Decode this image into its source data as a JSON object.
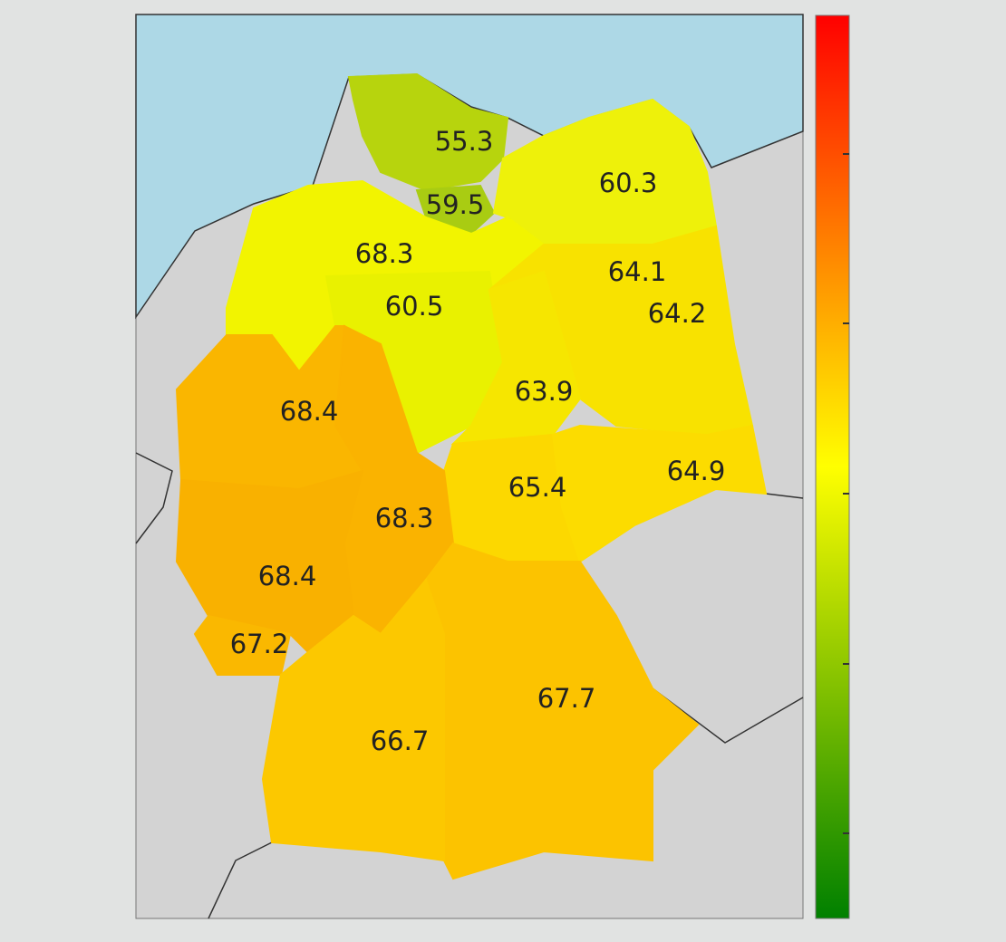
{
  "map": {
    "regions": [
      {
        "value": 55.3,
        "color": "#b7d40d"
      },
      {
        "value": 59.5,
        "color": "#a9cc12"
      },
      {
        "value": 60.3,
        "color": "#eef10a"
      },
      {
        "value": 68.3,
        "color": "#f2f400"
      },
      {
        "value": 60.5,
        "color": "#e9f100"
      },
      {
        "value": 64.1,
        "color": "#f8e200"
      },
      {
        "value": 64.2,
        "color": "#f8e200"
      },
      {
        "value": 68.4,
        "color": "#fab600"
      },
      {
        "value": 63.9,
        "color": "#f6e600"
      },
      {
        "value": 65.4,
        "color": "#fcd800"
      },
      {
        "value": 64.9,
        "color": "#fcdc00"
      },
      {
        "value": 68.3,
        "color": "#fab300"
      },
      {
        "value": 68.4,
        "color": "#f9b100"
      },
      {
        "value": 67.2,
        "color": "#fab800"
      },
      {
        "value": 67.7,
        "color": "#fcc300"
      },
      {
        "value": 66.7,
        "color": "#fcc800"
      }
    ],
    "colorbar": {
      "colors": [
        "#008000",
        "#ffff00",
        "#ff0000"
      ]
    }
  }
}
